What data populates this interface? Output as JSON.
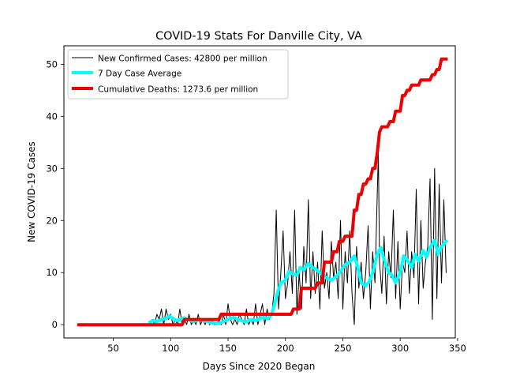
{
  "chart_data": {
    "type": "line",
    "title": "COVID-19 Stats For Danville City, VA",
    "xlabel": "Days Since 2020 Began",
    "ylabel": "New COVID-19 Cases",
    "xlim": [
      7,
      348
    ],
    "ylim": [
      -2.55,
      53.55
    ],
    "xticks": [
      50,
      100,
      150,
      200,
      250,
      300,
      350
    ],
    "yticks": [
      0,
      10,
      20,
      30,
      40,
      50
    ],
    "grid": false,
    "legend_position": "upper left",
    "series": [
      {
        "name": "New Confirmed Cases: 42800 per million",
        "color": "#000000",
        "line_width": 1,
        "x": [
          82,
          84,
          86,
          88,
          90,
          92,
          94,
          96,
          98,
          100,
          102,
          104,
          106,
          108,
          110,
          112,
          114,
          116,
          118,
          120,
          122,
          124,
          126,
          128,
          130,
          132,
          134,
          136,
          138,
          140,
          142,
          144,
          146,
          148,
          150,
          152,
          154,
          156,
          158,
          160,
          162,
          164,
          166,
          168,
          170,
          172,
          174,
          176,
          178,
          180,
          182,
          184,
          186,
          188,
          190,
          192,
          194,
          196,
          198,
          200,
          202,
          204,
          206,
          208,
          210,
          212,
          214,
          216,
          218,
          220,
          222,
          224,
          226,
          228,
          230,
          232,
          234,
          236,
          238,
          240,
          242,
          244,
          246,
          248,
          250,
          252,
          254,
          256,
          258,
          260,
          262,
          264,
          266,
          268,
          270,
          272,
          274,
          276,
          278,
          280,
          281,
          282,
          284,
          286,
          288,
          290,
          292,
          294,
          296,
          298,
          300,
          302,
          304,
          306,
          308,
          310,
          312,
          314,
          316,
          318,
          320,
          322,
          324,
          326,
          328,
          330,
          332,
          334,
          336,
          338,
          340
        ],
        "y": [
          0,
          1,
          0,
          2,
          1,
          3,
          0,
          3,
          1,
          2,
          0,
          1,
          0,
          3,
          0,
          1,
          0,
          2,
          0,
          1,
          0,
          2,
          0,
          1,
          0,
          1,
          0,
          1,
          0,
          0,
          1,
          0,
          2,
          0,
          4,
          1,
          0,
          1,
          0,
          2,
          1,
          0,
          3,
          0,
          1,
          0,
          4,
          0,
          2,
          4,
          0,
          3,
          1,
          2,
          6,
          22,
          3,
          10,
          18,
          5,
          8,
          14,
          6,
          22,
          2,
          10,
          3,
          15,
          8,
          24,
          5,
          14,
          6,
          12,
          3,
          18,
          7,
          10,
          5,
          16,
          9,
          12,
          5,
          20,
          3,
          14,
          8,
          18,
          6,
          0,
          15,
          7,
          12,
          5,
          10,
          19,
          3,
          14,
          8,
          25,
          33,
          12,
          6,
          17,
          4,
          14,
          9,
          22,
          5,
          16,
          3,
          12,
          10,
          18,
          6,
          14,
          9,
          26,
          4,
          20,
          7,
          12,
          15,
          28,
          1,
          30,
          5,
          27,
          8,
          24,
          10
        ],
        "x_note": "day of year"
      },
      {
        "name": "7 Day Case Average",
        "color": "#00ffff",
        "line_width": 4,
        "x": [
          82,
          85,
          88,
          92,
          96,
          99,
          102,
          105,
          108,
          112,
          116,
          120,
          125,
          130,
          135,
          140,
          145,
          150,
          155,
          160,
          165,
          170,
          175,
          180,
          185,
          188,
          190,
          193,
          196,
          200,
          203,
          206,
          210,
          213,
          216,
          220,
          223,
          226,
          230,
          233,
          236,
          240,
          244,
          248,
          252,
          256,
          260,
          263,
          266,
          270,
          273,
          276,
          280,
          283,
          286,
          290,
          293,
          296,
          300,
          303,
          306,
          310,
          313,
          316,
          320,
          323,
          326,
          330,
          333,
          336,
          340
        ],
        "y": [
          0.5,
          0.8,
          0.6,
          1,
          1.2,
          1.7,
          1.2,
          0.8,
          1,
          1.3,
          0.9,
          0.6,
          1,
          0.7,
          0.4,
          0.2,
          0.5,
          1,
          1.4,
          0.9,
          0.5,
          1,
          0.8,
          1.4,
          1.2,
          2,
          3.5,
          6,
          8,
          8.5,
          10.2,
          9.8,
          9.5,
          11,
          10.5,
          11.8,
          11,
          10.8,
          10,
          9.5,
          9,
          8.5,
          9.2,
          10.2,
          11.5,
          12,
          13.2,
          11,
          8,
          7.5,
          8.2,
          10,
          13.5,
          14.8,
          12.5,
          10,
          9.5,
          8,
          10,
          13.2,
          12.5,
          11,
          13.5,
          12.2,
          14.2,
          13,
          14.8,
          16.2,
          13.5,
          15,
          16
        ]
      },
      {
        "name": "Cumulative Deaths: 1273.6 per million",
        "color": "#ee0000",
        "line_width": 4,
        "x": [
          20,
          110,
          112,
          142,
          144,
          188,
          190,
          205,
          207,
          212,
          214,
          226,
          228,
          232,
          234,
          240,
          242,
          245,
          247,
          250,
          252,
          253,
          255,
          258,
          260,
          262,
          264,
          266,
          268,
          270,
          272,
          274,
          276,
          278,
          280,
          282,
          284,
          289,
          291,
          294,
          296,
          300,
          302,
          304,
          306,
          308,
          310,
          316,
          318,
          320,
          322,
          326,
          328,
          330,
          332,
          334,
          336,
          338,
          340
        ],
        "y": [
          0,
          0,
          1,
          1,
          2,
          2,
          2,
          2,
          3,
          3,
          7,
          7,
          8,
          8,
          12,
          12,
          14,
          14,
          16,
          16,
          17,
          17,
          17,
          17,
          22,
          22,
          25,
          25,
          27,
          27,
          28,
          28,
          30,
          30,
          33,
          37,
          38,
          38,
          39,
          39,
          41,
          41,
          44,
          44,
          45,
          45,
          46,
          46,
          47,
          47,
          47,
          47,
          48,
          48,
          49,
          49,
          51,
          51,
          51
        ]
      }
    ]
  }
}
